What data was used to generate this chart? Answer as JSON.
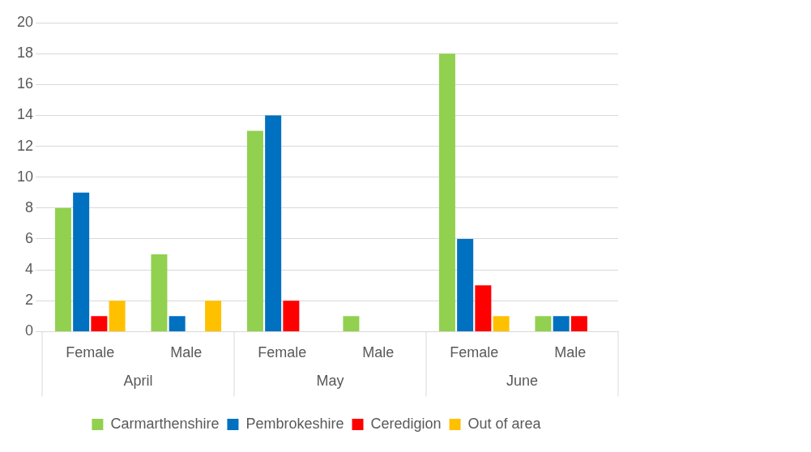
{
  "chart_data": {
    "type": "bar",
    "categories": [
      "Female",
      "Male",
      "Female",
      "Male",
      "Female",
      "Male"
    ],
    "series": [
      {
        "name": "Carmarthenshire",
        "color": "#92d050",
        "values": [
          8,
          5,
          13,
          1,
          18,
          1
        ]
      },
      {
        "name": "Pembrokeshire",
        "color": "#0070c0",
        "values": [
          9,
          1,
          14,
          0,
          6,
          1
        ]
      },
      {
        "name": "Ceredigion",
        "color": "#ff0000",
        "values": [
          1,
          0,
          2,
          0,
          3,
          1
        ]
      },
      {
        "name": "Out of area",
        "color": "#ffc000",
        "values": [
          2,
          2,
          0,
          0,
          1,
          0
        ]
      }
    ],
    "annotations": [
      "April",
      "May",
      "June"
    ],
    "ylim": [
      0,
      20
    ],
    "yticks": [
      0,
      2,
      4,
      6,
      8,
      10,
      12,
      14,
      16,
      18,
      20
    ],
    "grid": "y",
    "legend": "bottom"
  }
}
